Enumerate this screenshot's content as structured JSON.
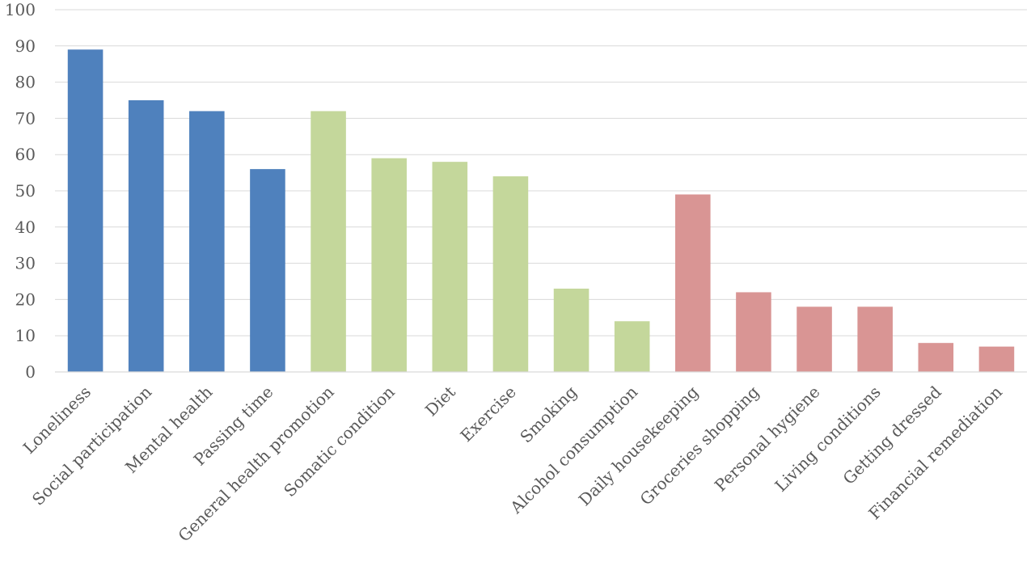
{
  "chart_data": {
    "type": "bar",
    "title": "",
    "xlabel": "",
    "ylabel": "",
    "ylim": [
      0,
      100
    ],
    "yticks": [
      0,
      10,
      20,
      30,
      40,
      50,
      60,
      70,
      80,
      90,
      100
    ],
    "grid": true,
    "legend": "none",
    "categories": [
      "Loneliness",
      "Social participation",
      "Mental health",
      "Passing time",
      "General health promotion",
      "Somatic condition",
      "Diet",
      "Exercise",
      "Smoking",
      "Alcohol consumption",
      "Daily housekeeping",
      "Groceries shopping",
      "Personal hygiene",
      "Living conditions",
      "Getting dressed",
      "Financial remediation"
    ],
    "values": [
      89,
      75,
      72,
      56,
      72,
      59,
      58,
      54,
      23,
      14,
      49,
      22,
      18,
      18,
      8,
      7
    ],
    "bar_colors": [
      "#4f81bd",
      "#4f81bd",
      "#4f81bd",
      "#4f81bd",
      "#c4d79b",
      "#c4d79b",
      "#c4d79b",
      "#c4d79b",
      "#c4d79b",
      "#c4d79b",
      "#d99594",
      "#d99594",
      "#d99594",
      "#d99594",
      "#d99594",
      "#d99594"
    ]
  }
}
